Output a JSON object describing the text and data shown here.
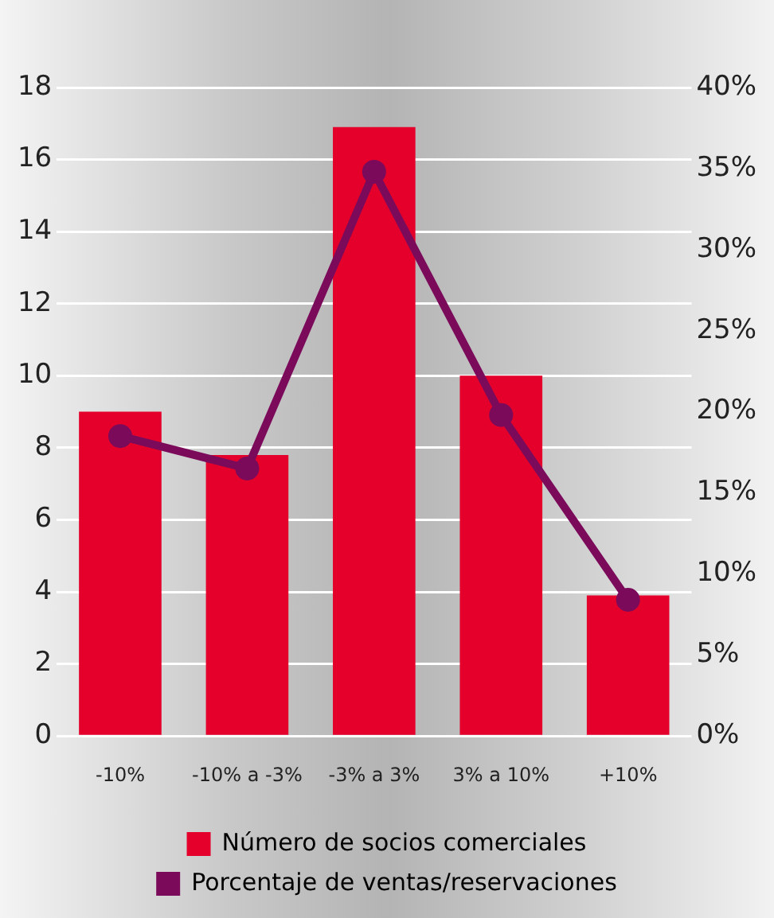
{
  "chart_data": {
    "type": "bar",
    "categories": [
      "-10%",
      "-10% a -3%",
      "-3% a 3%",
      "3% a 10%",
      "+10%"
    ],
    "series": [
      {
        "name": "Número de socios comerciales",
        "color": "#e4002b",
        "values": [
          9,
          7.8,
          16.9,
          10,
          3.9
        ]
      },
      {
        "name": "Porcentaje de ventas/reservaciones",
        "color": "#7b0a5b",
        "type": "line",
        "axis": "y2",
        "values": [
          18.5,
          16.5,
          34.8,
          19.8,
          8.4
        ]
      }
    ],
    "ylim": [
      0,
      18
    ],
    "yticks": [
      0,
      2,
      4,
      6,
      8,
      10,
      12,
      14,
      16,
      18
    ],
    "y2lim": [
      0,
      40
    ],
    "y2ticks": [
      {
        "value": 0,
        "label": "0%"
      },
      {
        "value": 5,
        "label": "5%"
      },
      {
        "value": 10,
        "label": "10%"
      },
      {
        "value": 15,
        "label": "15%"
      },
      {
        "value": 20,
        "label": "20%"
      },
      {
        "value": 25,
        "label": "25%"
      },
      {
        "value": 30,
        "label": "30%"
      },
      {
        "value": 35,
        "label": "35%"
      },
      {
        "value": 40,
        "label": "40%"
      }
    ],
    "grid": "y",
    "legend": "bottom",
    "marker": "circle",
    "line_style": "solid"
  }
}
